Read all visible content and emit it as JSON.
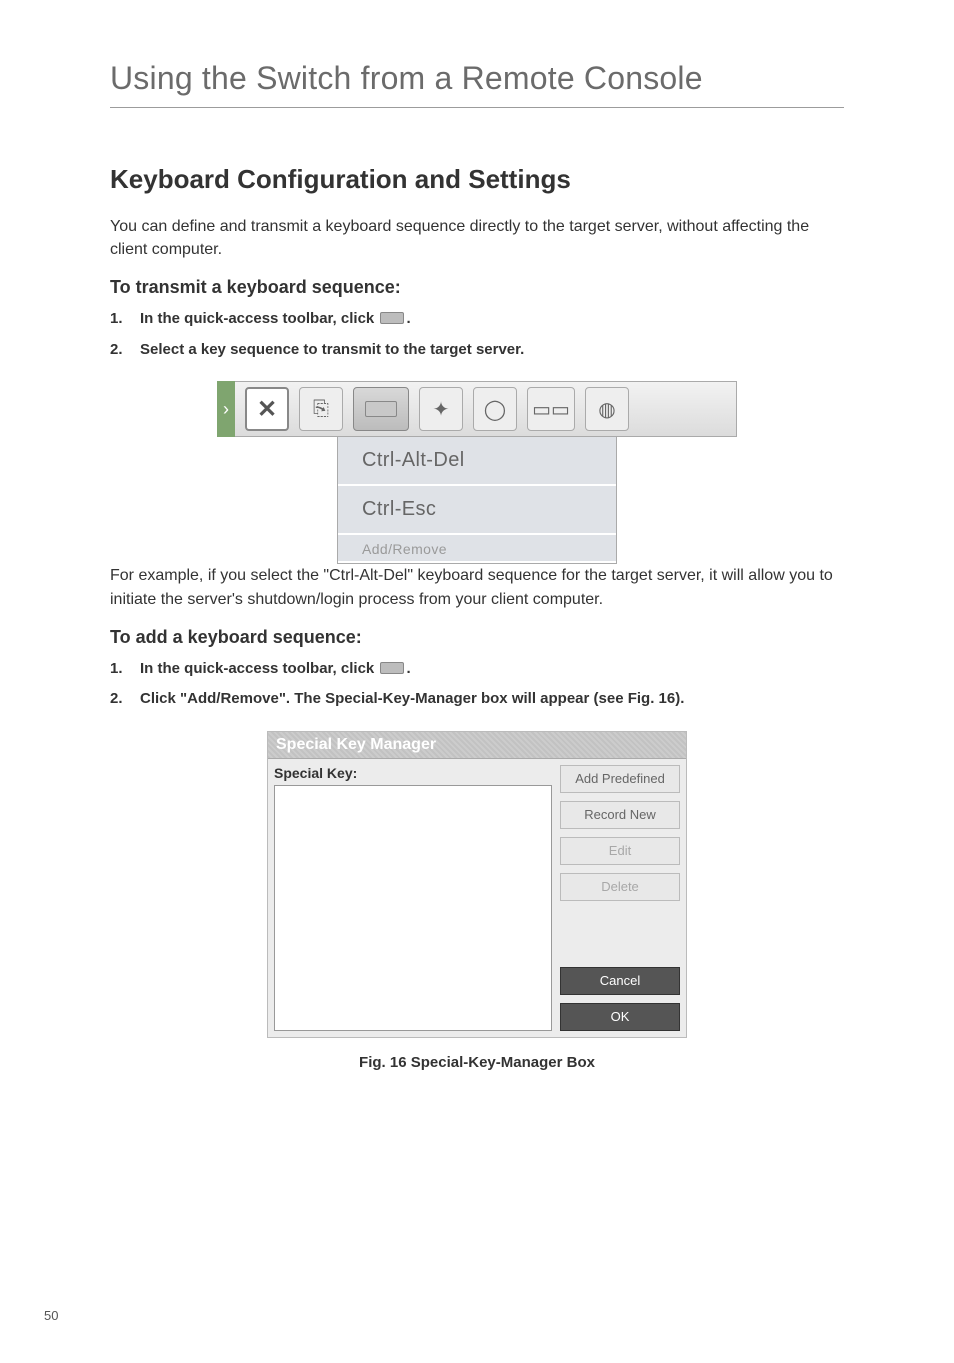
{
  "chapter_title": "Using the Switch from a Remote Console",
  "section_heading": "Keyboard Configuration and Settings",
  "intro_paragraph": "You can define and transmit a keyboard sequence directly to the target server, without affecting the client computer.",
  "transmit": {
    "heading": "To transmit a keyboard sequence:",
    "step1_num": "1.",
    "step1_text_a": "In the quick-access toolbar, click ",
    "step1_text_b": ".",
    "step2_num": "2.",
    "step2_text": "Select a key sequence to transmit to the target server."
  },
  "toolbar_menu": {
    "item1": "Ctrl-Alt-Del",
    "item2": "Ctrl-Esc",
    "item3": "Add/Remove"
  },
  "example_paragraph": "For example, if you select the \"Ctrl-Alt-Del\" keyboard sequence for the target server, it will allow you to initiate the server's shutdown/login process from your client computer.",
  "add": {
    "heading": "To add a keyboard sequence:",
    "step1_num": "1.",
    "step1_text_a": "In the quick-access toolbar, click ",
    "step1_text_b": ".",
    "step2_num": "2.",
    "step2_text": "Click \"Add/Remove\". The Special-Key-Manager box will appear (see Fig. 16)."
  },
  "skm": {
    "title": "Special Key Manager",
    "label": "Special Key:",
    "btn_add": "Add Predefined",
    "btn_record": "Record New",
    "btn_edit": "Edit",
    "btn_delete": "Delete",
    "btn_cancel": "Cancel",
    "btn_ok": "OK"
  },
  "figure_caption": "Fig. 16 Special-Key-Manager Box",
  "page_number": "50",
  "colors": {
    "rule": "#9c9c9c",
    "heading": "#333333",
    "body": "#333333",
    "chapter": "#6b6b6b",
    "toolbar_accent": "#7fa56f",
    "skm_dark_btn": "#555555"
  }
}
